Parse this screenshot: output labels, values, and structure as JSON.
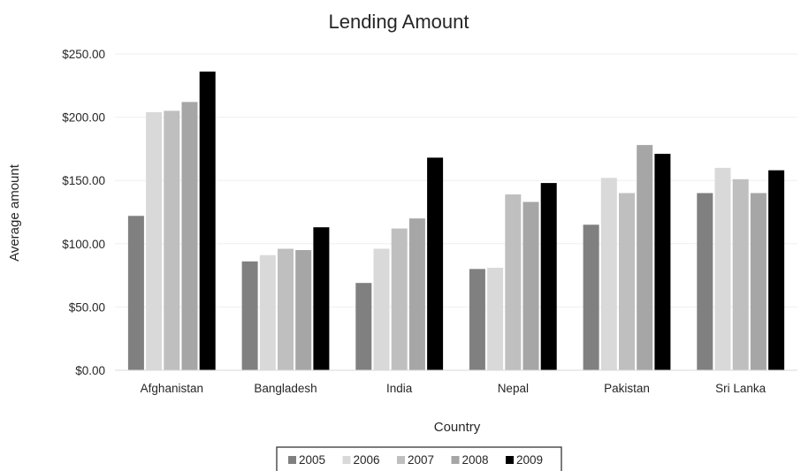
{
  "chart_data": {
    "type": "bar",
    "title": "Lending Amount",
    "xlabel": "Country",
    "ylabel": "Average amount",
    "categories": [
      "Afghanistan",
      "Bangladesh",
      "India",
      "Nepal",
      "Pakistan",
      "Sri Lanka"
    ],
    "series": [
      {
        "name": "2005",
        "color": "#808080",
        "values": [
          122,
          86,
          69,
          80,
          115,
          140
        ]
      },
      {
        "name": "2006",
        "color": "#d9d9d9",
        "values": [
          204,
          91,
          96,
          81,
          152,
          160
        ]
      },
      {
        "name": "2007",
        "color": "#bfbfbf",
        "values": [
          205,
          96,
          112,
          139,
          140,
          151
        ]
      },
      {
        "name": "2008",
        "color": "#a6a6a6",
        "values": [
          212,
          95,
          120,
          133,
          178,
          140
        ]
      },
      {
        "name": "2009",
        "color": "#000000",
        "values": [
          236,
          113,
          168,
          148,
          171,
          158
        ]
      }
    ],
    "ylim": [
      0,
      250
    ],
    "yticks": [
      "$0.00",
      "$50.00",
      "$100.00",
      "$150.00",
      "$200.00",
      "$250.00"
    ],
    "ytick_values": [
      0,
      50,
      100,
      150,
      200,
      250
    ],
    "grid": true,
    "legend_position": "bottom"
  }
}
